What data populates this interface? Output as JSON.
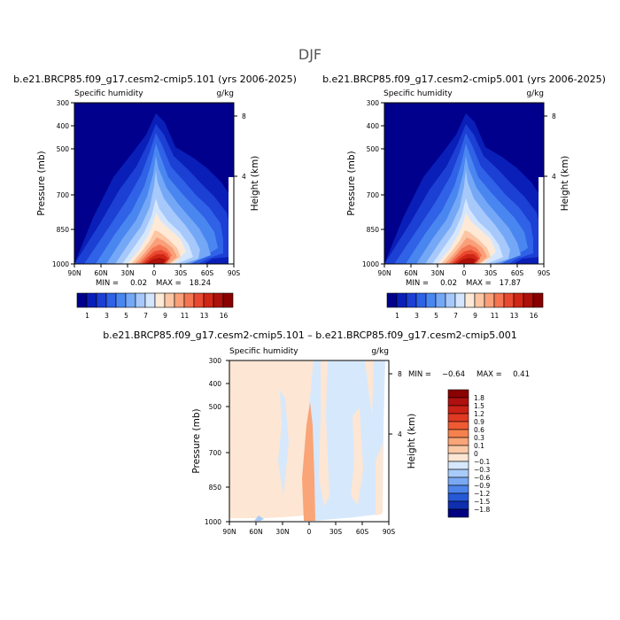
{
  "figure": {
    "title": "DJF"
  },
  "chart_data": [
    {
      "type": "contour",
      "title": "b.e21.BRCP85.f09_g17.cesm2-cmip5.101 (yrs 2006-2025)",
      "subtitle_left": "Specific humidity",
      "units": "g/kg",
      "xlabel": "",
      "ylabel": "Pressure (mb)",
      "ylabel_right": "Height (km)",
      "x_ticks": [
        "90N",
        "60N",
        "30N",
        "0",
        "30S",
        "60S",
        "90S"
      ],
      "y_ticks": [
        "300",
        "400",
        "500",
        "700",
        "850",
        "1000"
      ],
      "y_ticks_right": [
        "8",
        "4"
      ],
      "min_label": "MIN =",
      "min_value": "0.02",
      "max_label": "MAX =",
      "max_value": "18.24",
      "min": 0.02,
      "max": 18.24,
      "colorbar_labels": [
        "1",
        "3",
        "5",
        "7",
        "9",
        "11",
        "13",
        "16"
      ],
      "colorbar_colors": [
        "#00008c",
        "#0a1fb8",
        "#1c3fd4",
        "#2f62e6",
        "#4a86f0",
        "#74a8f6",
        "#a6c8fb",
        "#d4e6fd",
        "#fde9d6",
        "#fcc6a4",
        "#f99f7a",
        "#f47551",
        "#e84930",
        "#cf2616",
        "#ad1109",
        "#880000"
      ]
    },
    {
      "type": "contour",
      "title": "b.e21.BRCP85.f09_g17.cesm2-cmip5.001 (yrs 2006-2025)",
      "subtitle_left": "Specific humidity",
      "units": "g/kg",
      "xlabel": "",
      "ylabel": "Pressure (mb)",
      "ylabel_right": "Height (km)",
      "x_ticks": [
        "90N",
        "60N",
        "30N",
        "0",
        "30S",
        "60S",
        "90S"
      ],
      "y_ticks": [
        "300",
        "400",
        "500",
        "700",
        "850",
        "1000"
      ],
      "y_ticks_right": [
        "8",
        "4"
      ],
      "min_label": "MIN =",
      "min_value": "0.02",
      "max_label": "MAX =",
      "max_value": "17.87",
      "min": 0.02,
      "max": 17.87,
      "colorbar_labels": [
        "1",
        "3",
        "5",
        "7",
        "9",
        "11",
        "13",
        "16"
      ],
      "colorbar_colors": [
        "#00008c",
        "#0a1fb8",
        "#1c3fd4",
        "#2f62e6",
        "#4a86f0",
        "#74a8f6",
        "#a6c8fb",
        "#d4e6fd",
        "#fde9d6",
        "#fcc6a4",
        "#f99f7a",
        "#f47551",
        "#e84930",
        "#cf2616",
        "#ad1109",
        "#880000"
      ]
    },
    {
      "type": "contour",
      "title": "b.e21.BRCP85.f09_g17.cesm2-cmip5.101 – b.e21.BRCP85.f09_g17.cesm2-cmip5.001",
      "subtitle_left": "Specific humidity",
      "units": "g/kg",
      "xlabel": "",
      "ylabel": "Pressure (mb)",
      "ylabel_right": "Height (km)",
      "x_ticks": [
        "90N",
        "60N",
        "30N",
        "0",
        "30S",
        "60S",
        "90S"
      ],
      "y_ticks": [
        "300",
        "400",
        "500",
        "700",
        "850",
        "1000"
      ],
      "y_ticks_right": [
        "8",
        "4"
      ],
      "min_label": "MIN =",
      "min_value": "−0.64",
      "max_label": "MAX =",
      "max_value": "0.41",
      "min": -0.64,
      "max": 0.41,
      "colorbar_labels": [
        "1.8",
        "1.5",
        "1.2",
        "0.9",
        "0.6",
        "0.3",
        "0.1",
        "0",
        "−0.1",
        "−0.3",
        "−0.6",
        "−0.9",
        "−1.2",
        "−1.5",
        "−1.8"
      ],
      "colorbar_colors": [
        "#8b0000",
        "#b01010",
        "#cc2116",
        "#e03a22",
        "#ef5a33",
        "#f6814e",
        "#f9a577",
        "#fcc9a6",
        "#fde6d3",
        "#d6e8fc",
        "#a9cbf9",
        "#7aa9f3",
        "#4c84ea",
        "#2659d6",
        "#0e2fb0",
        "#000080"
      ]
    }
  ]
}
